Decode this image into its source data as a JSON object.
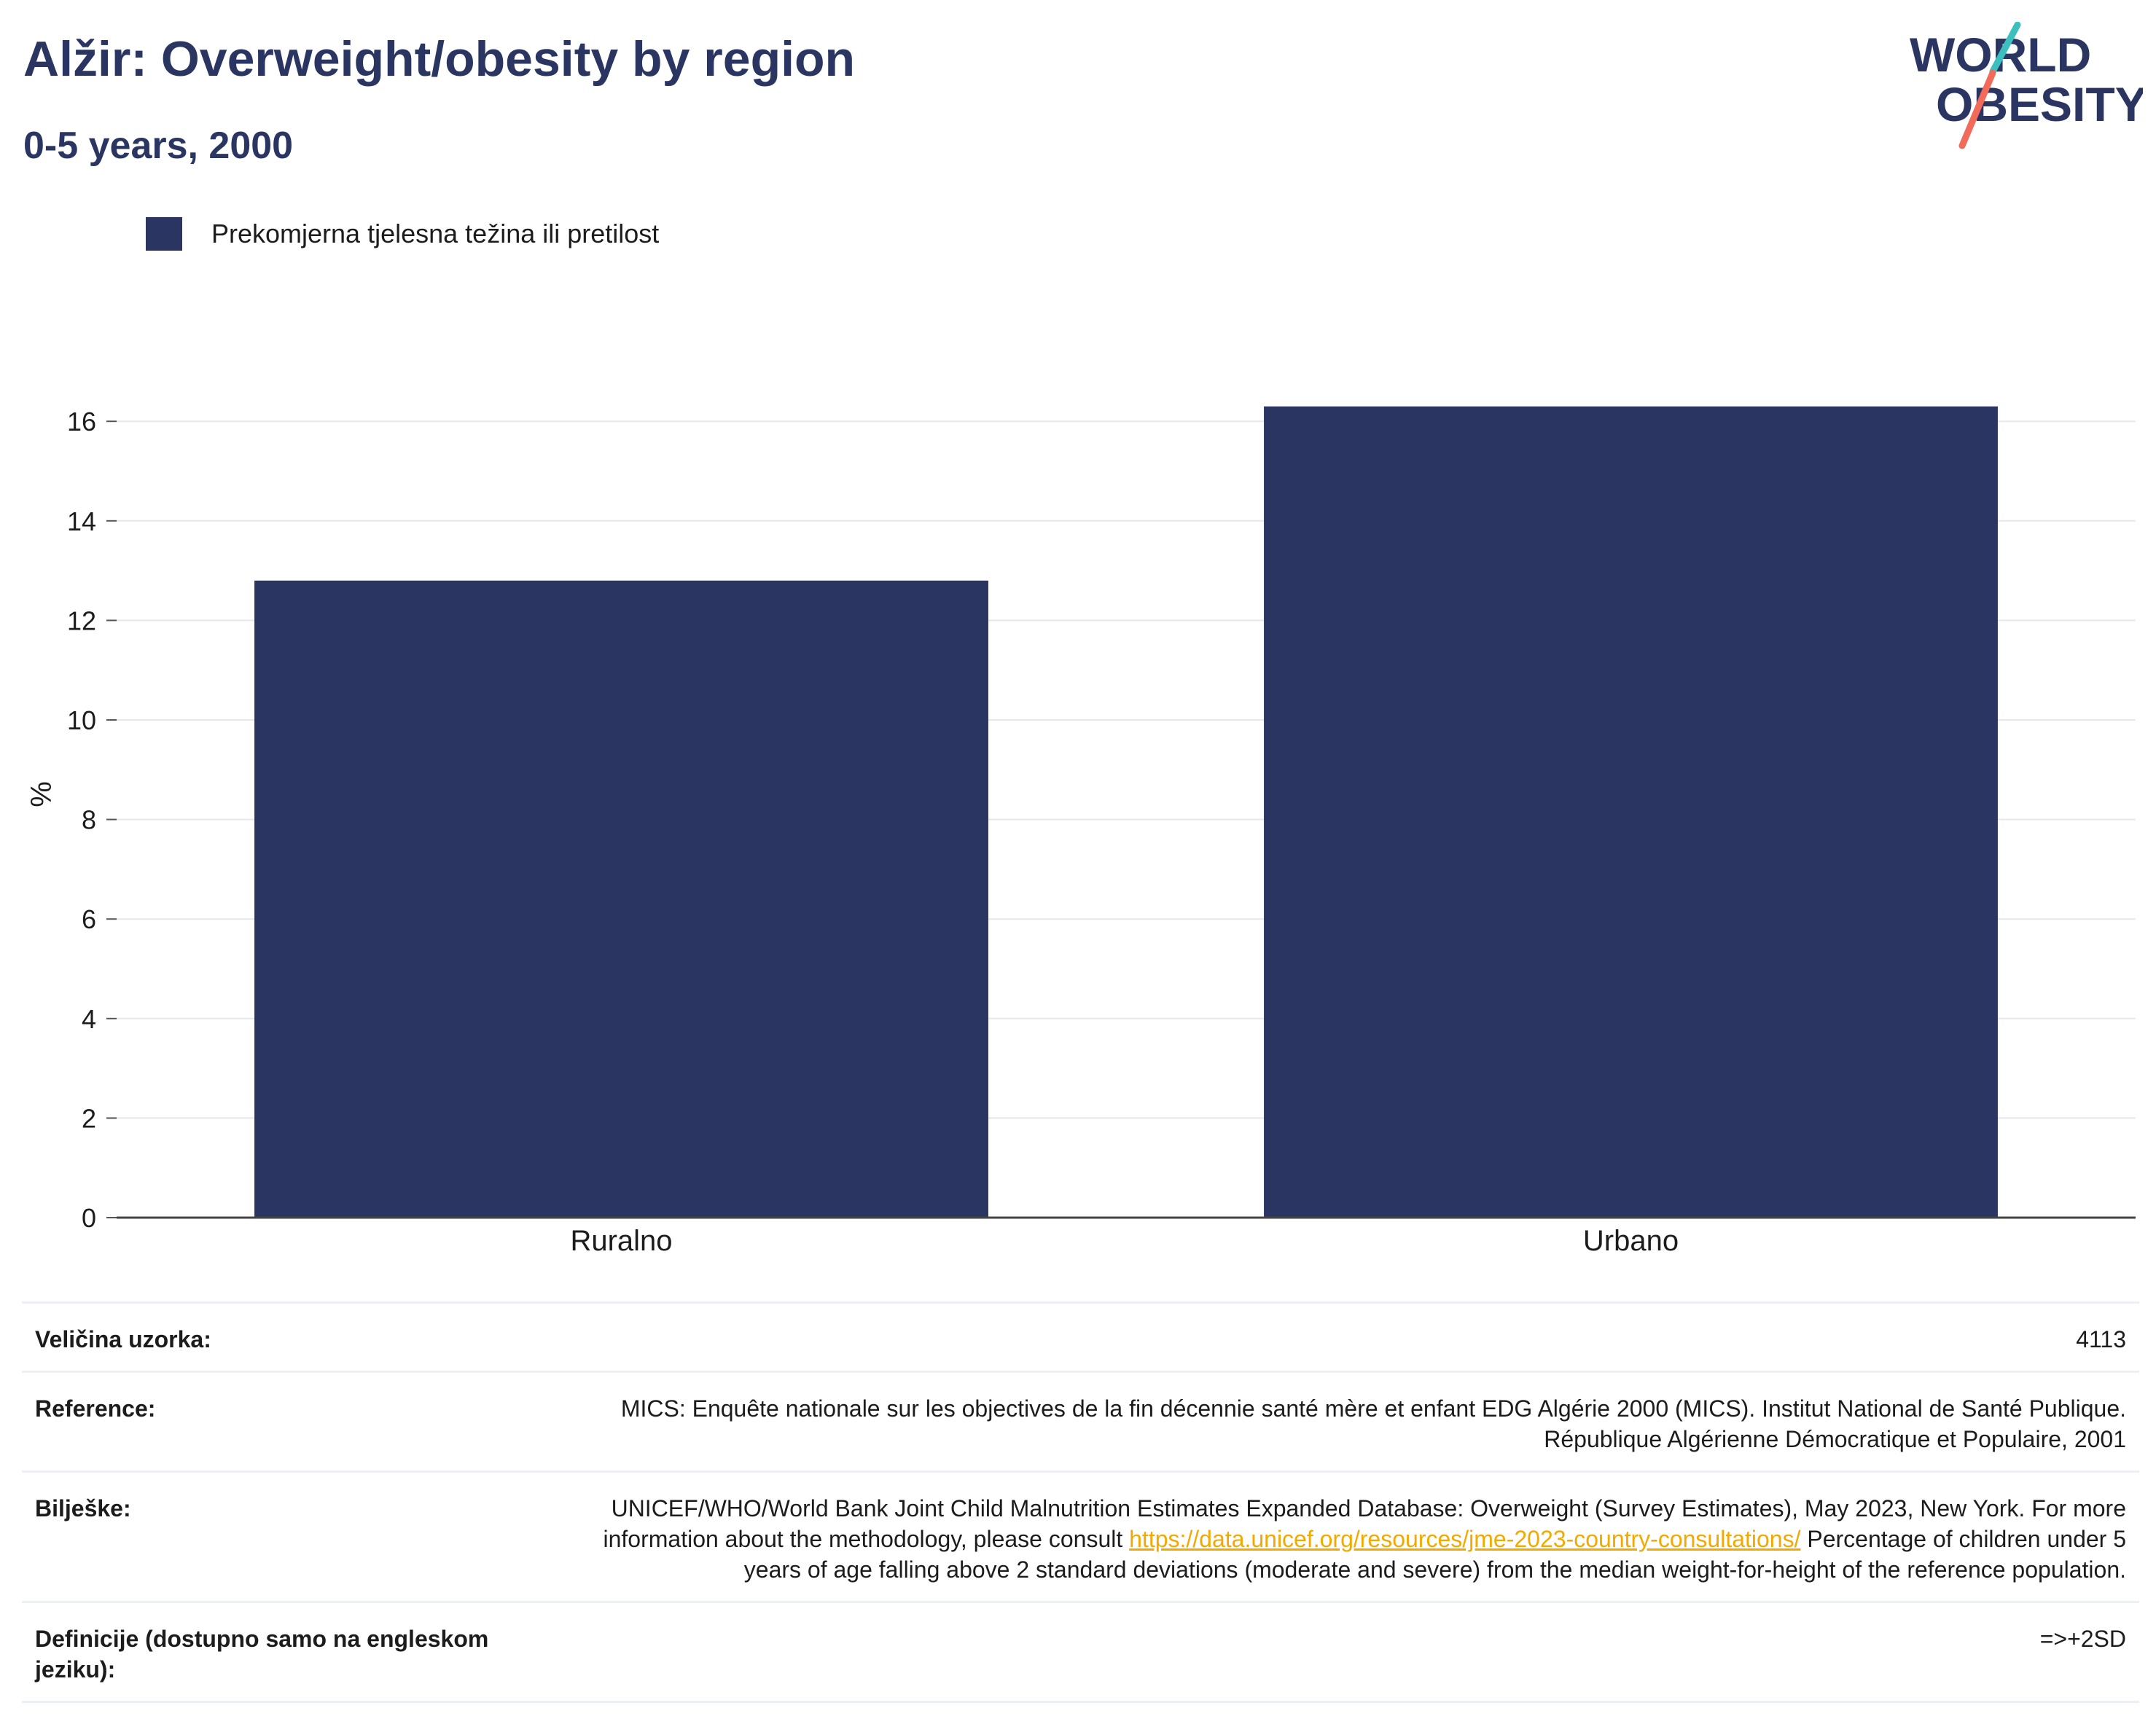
{
  "header": {
    "title": "Alžir: Overweight/obesity by region",
    "subtitle": "0-5 years, 2000"
  },
  "logo": {
    "line1": "WORLD",
    "line2": "OBESITY",
    "accent_teal": "#3bbfbf",
    "accent_coral": "#f26a5a"
  },
  "legend": {
    "label": "Prekomjerna tjelesna težina ili pretilost",
    "color": "#2a3661"
  },
  "chart_data": {
    "type": "bar",
    "title": "Alžir: Overweight/obesity by region",
    "subtitle": "0-5 years, 2000",
    "categories": [
      "Ruralno",
      "Urbano"
    ],
    "series": [
      {
        "name": "Prekomjerna tjelesna težina ili pretilost",
        "values": [
          12.8,
          16.3
        ],
        "color": "#2a3661"
      }
    ],
    "xlabel": "",
    "ylabel": "%",
    "ylim": [
      0,
      17
    ],
    "yticks": [
      0,
      2,
      4,
      6,
      8,
      10,
      12,
      14,
      16
    ],
    "grid": true,
    "legend_position": "top-left"
  },
  "footer": {
    "rows": [
      {
        "key": "Veličina uzorka:",
        "value": "4113"
      },
      {
        "key": "Reference:",
        "value": "MICS: Enquête nationale sur les objectives de la fin décennie santé mère et enfant EDG Algérie 2000 (MICS). Institut National de Santé Publique. République Algérienne Démocratique et Populaire, 2001"
      },
      {
        "key": "Bilješke:",
        "value_before": "UNICEF/WHO/World Bank Joint Child Malnutrition Estimates Expanded Database: Overweight (Survey Estimates), May 2023, New York. For more information about the methodology, please consult ",
        "link": "https://data.unicef.org/resources/jme-2023-country-consultations/",
        "value_after": " Percentage of children under 5 years of age falling above 2 standard deviations (moderate and severe) from the median weight-for-height of the reference population."
      },
      {
        "key": "Definicije (dostupno samo na engleskom jeziku):",
        "value": "=>+2SD"
      }
    ]
  }
}
